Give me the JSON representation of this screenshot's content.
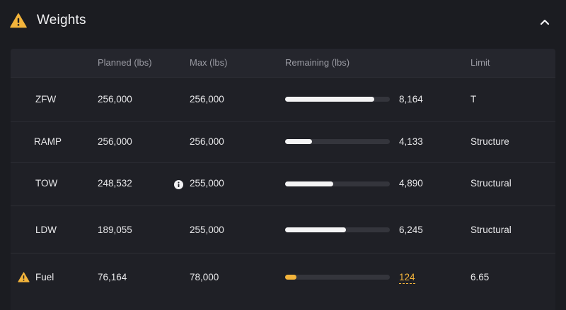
{
  "panel": {
    "title": "Weights",
    "warning_icon": "warning-triangle-icon",
    "collapse_icon": "chevron-up-icon"
  },
  "colors": {
    "warning": "#f3b43b",
    "bar_fill": "#f4f4f5",
    "bar_track": "#34353c",
    "background": "#1b1c21"
  },
  "table": {
    "columns": [
      "",
      "Planned (lbs)",
      "Max (lbs)",
      "Remaining (lbs)",
      "Limit"
    ],
    "rows": [
      {
        "label": "ZFW",
        "planned": "256,000",
        "max": "256,000",
        "remaining": "8,164",
        "remaining_fraction": 0.85,
        "limit": "T",
        "warning": false,
        "info": false
      },
      {
        "label": "RAMP",
        "planned": "256,000",
        "max": "256,000",
        "remaining": "4,133",
        "remaining_fraction": 0.26,
        "limit": "Structure",
        "warning": false,
        "info": false
      },
      {
        "label": "TOW",
        "planned": "248,532",
        "max": "255,000",
        "remaining": "4,890",
        "remaining_fraction": 0.46,
        "limit": "Structural",
        "warning": false,
        "info": true
      },
      {
        "label": "LDW",
        "planned": "189,055",
        "max": "255,000",
        "remaining": "6,245",
        "remaining_fraction": 0.58,
        "limit": "Structural",
        "warning": false,
        "info": false
      },
      {
        "label": "Fuel",
        "planned": "76,164",
        "max": "78,000",
        "remaining": "124",
        "remaining_fraction": 0.11,
        "limit": "6.65",
        "warning": true,
        "info": false
      }
    ]
  }
}
